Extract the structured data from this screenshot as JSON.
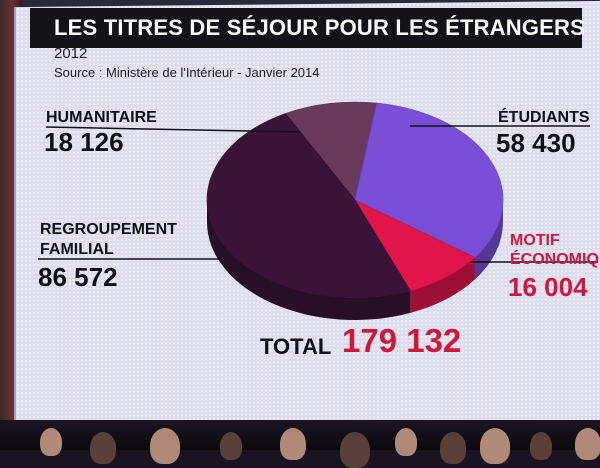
{
  "title": "LES TITRES DE SÉJOUR POUR LES ÉTRANGERS",
  "year": "2012",
  "source": "Source : Ministère de l'Intérieur - Janvier 2014",
  "total": {
    "label": "TOTAL",
    "value": "179 132"
  },
  "colors": {
    "humanitaire": "#6a3a5c",
    "etudiants": "#7a4fd8",
    "motif": "#e0154a",
    "regroupement": "#3a1438",
    "accent": "#d0163c"
  },
  "labels": {
    "humanitaire": "HUMANITAIRE",
    "humanitaire_value": "18 126",
    "etudiants": "ÉTUDIANTS",
    "etudiants_value": "58 430",
    "regroupement_1": "REGROUPEMENT",
    "regroupement_2": "FAMILIAL",
    "regroupement_value": "86 572",
    "motif_1": "MOTIF",
    "motif_2": "ÉCONOMIQ",
    "motif_value": "16 004"
  },
  "chart_data": {
    "type": "pie",
    "title": "LES TITRES DE SÉJOUR POUR LES ÉTRANGERS",
    "subtitle": "2012",
    "categories": [
      "Humanitaire",
      "Étudiants",
      "Motif économique",
      "Regroupement familial"
    ],
    "values": [
      18126,
      58430,
      16004,
      86572
    ],
    "total": 179132
  }
}
